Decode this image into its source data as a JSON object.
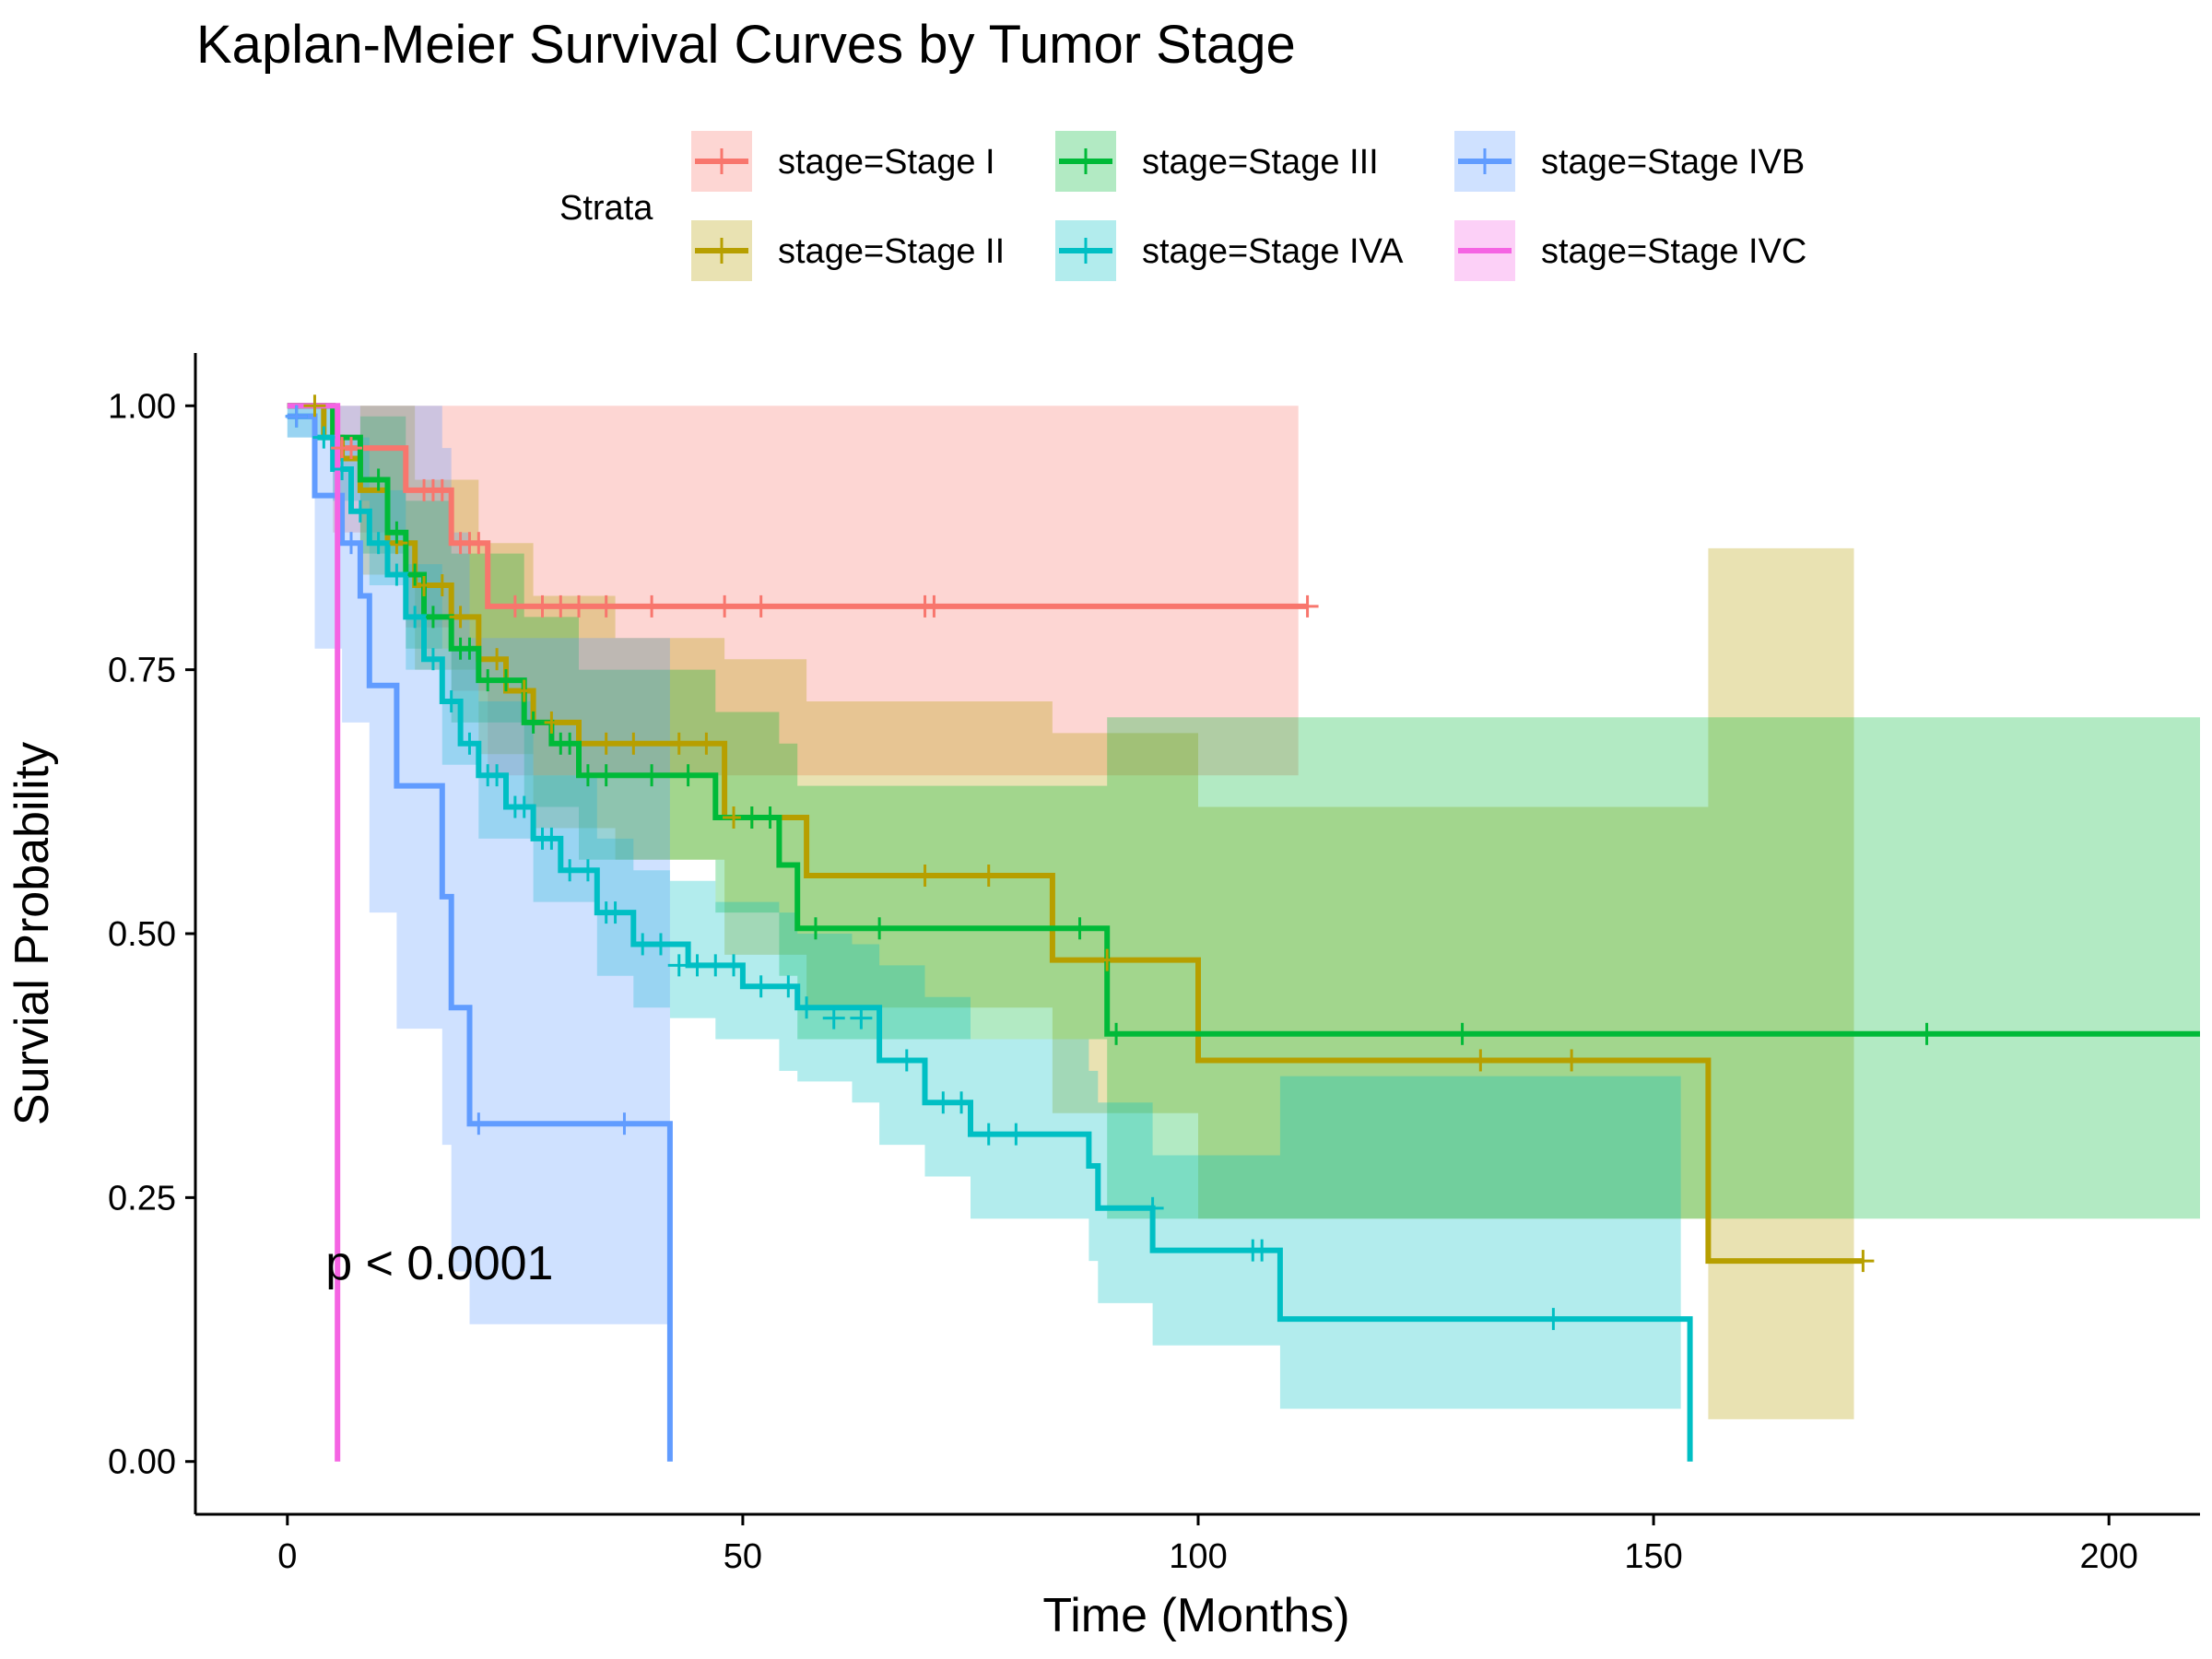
{
  "chart_data": {
    "type": "line",
    "subtype": "kaplan-meier-step",
    "title": "Kaplan-Meier Survival Curves by Tumor Stage",
    "xlabel": "Time (Months)",
    "ylabel": "Survial Probability",
    "xlim": [
      -10,
      210
    ],
    "ylim": [
      -0.05,
      1.05
    ],
    "x_ticks": [
      0,
      50,
      100,
      150,
      200
    ],
    "y_ticks": [
      0,
      0.25,
      0.5,
      0.75,
      1.0
    ],
    "y_tick_labels": [
      "0.00",
      "0.25",
      "0.50",
      "0.75",
      "1.00"
    ],
    "grid": false,
    "legend_position": "top",
    "legend_title": "Strata",
    "annotation": "p < 0.0001",
    "annotation_at": [
      5,
      0.19
    ],
    "series": [
      {
        "name": "stage=Stage I",
        "color": "#F8766D",
        "steps": [
          [
            0,
            1.0
          ],
          [
            5,
            0.96
          ],
          [
            13,
            0.92
          ],
          [
            18,
            0.87
          ],
          [
            22,
            0.81
          ],
          [
            112,
            0.81
          ]
        ],
        "ci": [
          [
            0,
            1.0,
            1.0
          ],
          [
            5,
            0.88,
            1.0
          ],
          [
            13,
            0.79,
            1.0
          ],
          [
            18,
            0.73,
            1.0
          ],
          [
            22,
            0.65,
            1.0
          ],
          [
            111,
            0.65,
            1.0
          ]
        ],
        "censors": [
          [
            6,
            0.96
          ],
          [
            7,
            0.96
          ],
          [
            15,
            0.92
          ],
          [
            16,
            0.92
          ],
          [
            17,
            0.92
          ],
          [
            19,
            0.87
          ],
          [
            20,
            0.87
          ],
          [
            21,
            0.87
          ],
          [
            25,
            0.81
          ],
          [
            28,
            0.81
          ],
          [
            30,
            0.81
          ],
          [
            32,
            0.81
          ],
          [
            35,
            0.81
          ],
          [
            40,
            0.81
          ],
          [
            48,
            0.81
          ],
          [
            52,
            0.81
          ],
          [
            70,
            0.81
          ],
          [
            71,
            0.81
          ],
          [
            112,
            0.81
          ]
        ]
      },
      {
        "name": "stage=Stage II",
        "color": "#B79F00",
        "steps": [
          [
            0,
            1.0
          ],
          [
            4,
            0.97
          ],
          [
            6,
            0.95
          ],
          [
            8,
            0.92
          ],
          [
            11,
            0.87
          ],
          [
            14,
            0.83
          ],
          [
            18,
            0.8
          ],
          [
            21,
            0.76
          ],
          [
            24,
            0.73
          ],
          [
            27,
            0.7
          ],
          [
            32,
            0.68
          ],
          [
            48,
            0.61
          ],
          [
            57,
            0.555
          ],
          [
            84,
            0.475
          ],
          [
            100,
            0.38
          ],
          [
            156,
            0.19
          ],
          [
            173,
            0.19
          ]
        ],
        "ci": [
          [
            0,
            1.0,
            1.0
          ],
          [
            8,
            0.84,
            1.0
          ],
          [
            14,
            0.75,
            0.93
          ],
          [
            21,
            0.67,
            0.87
          ],
          [
            27,
            0.6,
            0.82
          ],
          [
            36,
            0.57,
            0.78
          ],
          [
            48,
            0.48,
            0.76
          ],
          [
            57,
            0.43,
            0.72
          ],
          [
            84,
            0.33,
            0.69
          ],
          [
            100,
            0.23,
            0.62
          ],
          [
            156,
            0.04,
            0.865
          ],
          [
            172,
            0.04,
            0.865
          ]
        ],
        "censors": [
          [
            3,
            1.0
          ],
          [
            12,
            0.87
          ],
          [
            15,
            0.83
          ],
          [
            17,
            0.83
          ],
          [
            19,
            0.8
          ],
          [
            23,
            0.76
          ],
          [
            26,
            0.73
          ],
          [
            29,
            0.7
          ],
          [
            35,
            0.68
          ],
          [
            38,
            0.68
          ],
          [
            43,
            0.68
          ],
          [
            46,
            0.68
          ],
          [
            49,
            0.61
          ],
          [
            51,
            0.61
          ],
          [
            70,
            0.555
          ],
          [
            77,
            0.555
          ],
          [
            90,
            0.475
          ],
          [
            131,
            0.38
          ],
          [
            141,
            0.38
          ],
          [
            173,
            0.19
          ]
        ]
      },
      {
        "name": "stage=Stage III",
        "color": "#00BA38",
        "steps": [
          [
            0,
            1.0
          ],
          [
            5,
            0.97
          ],
          [
            8,
            0.93
          ],
          [
            11,
            0.88
          ],
          [
            13,
            0.84
          ],
          [
            15,
            0.8
          ],
          [
            18,
            0.77
          ],
          [
            21,
            0.74
          ],
          [
            26,
            0.7
          ],
          [
            29,
            0.68
          ],
          [
            32,
            0.65
          ],
          [
            47,
            0.61
          ],
          [
            54,
            0.565
          ],
          [
            56,
            0.505
          ],
          [
            90,
            0.405
          ],
          [
            210,
            0.405
          ]
        ],
        "ci": [
          [
            0,
            1.0,
            1.0
          ],
          [
            8,
            0.86,
            0.99
          ],
          [
            13,
            0.77,
            0.91
          ],
          [
            18,
            0.7,
            0.86
          ],
          [
            26,
            0.62,
            0.8
          ],
          [
            32,
            0.57,
            0.75
          ],
          [
            47,
            0.52,
            0.71
          ],
          [
            54,
            0.46,
            0.68
          ],
          [
            56,
            0.4,
            0.64
          ],
          [
            90,
            0.23,
            0.705
          ],
          [
            210,
            0.23,
            0.705
          ]
        ],
        "censors": [
          [
            10,
            0.93
          ],
          [
            12,
            0.88
          ],
          [
            14,
            0.84
          ],
          [
            16,
            0.8
          ],
          [
            19,
            0.77
          ],
          [
            20,
            0.77
          ],
          [
            22,
            0.74
          ],
          [
            24,
            0.74
          ],
          [
            27,
            0.7
          ],
          [
            30,
            0.68
          ],
          [
            31,
            0.68
          ],
          [
            33,
            0.65
          ],
          [
            35,
            0.65
          ],
          [
            40,
            0.65
          ],
          [
            44,
            0.65
          ],
          [
            51,
            0.61
          ],
          [
            53,
            0.61
          ],
          [
            58,
            0.505
          ],
          [
            65,
            0.505
          ],
          [
            87,
            0.505
          ],
          [
            91,
            0.405
          ],
          [
            129,
            0.405
          ],
          [
            180,
            0.405
          ]
        ]
      },
      {
        "name": "stage=Stage IVA",
        "color": "#00BFC4",
        "steps": [
          [
            0,
            0.99
          ],
          [
            3,
            0.97
          ],
          [
            5,
            0.94
          ],
          [
            7,
            0.9
          ],
          [
            9,
            0.87
          ],
          [
            11,
            0.84
          ],
          [
            13,
            0.8
          ],
          [
            15,
            0.76
          ],
          [
            17,
            0.72
          ],
          [
            19,
            0.68
          ],
          [
            21,
            0.65
          ],
          [
            24,
            0.62
          ],
          [
            27,
            0.59
          ],
          [
            30,
            0.56
          ],
          [
            34,
            0.52
          ],
          [
            38,
            0.49
          ],
          [
            44,
            0.47
          ],
          [
            50,
            0.45
          ],
          [
            56,
            0.43
          ],
          [
            65,
            0.38
          ],
          [
            70,
            0.34
          ],
          [
            75,
            0.31
          ],
          [
            88,
            0.28
          ],
          [
            89,
            0.24
          ],
          [
            95,
            0.2
          ],
          [
            109,
            0.135
          ],
          [
            154,
            0.0
          ]
        ],
        "ci": [
          [
            0,
            0.97,
            1.0
          ],
          [
            5,
            0.91,
            0.97
          ],
          [
            9,
            0.83,
            0.92
          ],
          [
            13,
            0.75,
            0.85
          ],
          [
            17,
            0.66,
            0.77
          ],
          [
            21,
            0.59,
            0.72
          ],
          [
            27,
            0.53,
            0.65
          ],
          [
            34,
            0.46,
            0.59
          ],
          [
            38,
            0.43,
            0.56
          ],
          [
            42,
            0.42,
            0.55
          ],
          [
            47,
            0.4,
            0.53
          ],
          [
            54,
            0.37,
            0.52
          ],
          [
            56,
            0.36,
            0.5
          ],
          [
            62,
            0.34,
            0.49
          ],
          [
            65,
            0.3,
            0.47
          ],
          [
            70,
            0.27,
            0.44
          ],
          [
            75,
            0.23,
            0.4
          ],
          [
            88,
            0.19,
            0.37
          ],
          [
            89,
            0.15,
            0.34
          ],
          [
            95,
            0.11,
            0.29
          ],
          [
            109,
            0.05,
            0.365
          ],
          [
            153,
            0.05,
            0.365
          ]
        ],
        "censors": [
          [
            1,
            0.99
          ],
          [
            4,
            0.97
          ],
          [
            6,
            0.94
          ],
          [
            8,
            0.9
          ],
          [
            10,
            0.87
          ],
          [
            12,
            0.84
          ],
          [
            14,
            0.8
          ],
          [
            16,
            0.76
          ],
          [
            18,
            0.72
          ],
          [
            20,
            0.68
          ],
          [
            22,
            0.65
          ],
          [
            23,
            0.65
          ],
          [
            25,
            0.62
          ],
          [
            26,
            0.62
          ],
          [
            28,
            0.59
          ],
          [
            29,
            0.59
          ],
          [
            31,
            0.56
          ],
          [
            33,
            0.56
          ],
          [
            35,
            0.52
          ],
          [
            36,
            0.52
          ],
          [
            39,
            0.49
          ],
          [
            41,
            0.49
          ],
          [
            43,
            0.47
          ],
          [
            45,
            0.47
          ],
          [
            47,
            0.47
          ],
          [
            49,
            0.47
          ],
          [
            52,
            0.45
          ],
          [
            55,
            0.45
          ],
          [
            57,
            0.43
          ],
          [
            60,
            0.42
          ],
          [
            63,
            0.42
          ],
          [
            68,
            0.38
          ],
          [
            72,
            0.34
          ],
          [
            74,
            0.34
          ],
          [
            77,
            0.31
          ],
          [
            80,
            0.31
          ],
          [
            95,
            0.24
          ],
          [
            106,
            0.2
          ],
          [
            107,
            0.2
          ],
          [
            139,
            0.135
          ]
        ]
      },
      {
        "name": "stage=Stage IVB",
        "color": "#619CFF",
        "steps": [
          [
            0,
            0.99
          ],
          [
            3,
            0.915
          ],
          [
            6,
            0.87
          ],
          [
            8,
            0.82
          ],
          [
            9,
            0.735
          ],
          [
            12,
            0.64
          ],
          [
            17,
            0.535
          ],
          [
            18,
            0.43
          ],
          [
            20,
            0.32
          ],
          [
            42,
            0.0
          ]
        ],
        "ci": [
          [
            0,
            0.97,
            1.0
          ],
          [
            3,
            0.77,
            1.0
          ],
          [
            6,
            0.7,
            1.0
          ],
          [
            9,
            0.52,
            1.0
          ],
          [
            12,
            0.41,
            1.0
          ],
          [
            17,
            0.3,
            0.96
          ],
          [
            18,
            0.18,
            0.88
          ],
          [
            20,
            0.13,
            0.78
          ],
          [
            42,
            0.13,
            0.78
          ]
        ],
        "censors": [
          [
            1,
            0.99
          ],
          [
            7,
            0.87
          ],
          [
            21,
            0.32
          ],
          [
            37,
            0.32
          ]
        ]
      },
      {
        "name": "stage=Stage IVC",
        "color": "#F564E3",
        "steps": [
          [
            0,
            1.0
          ],
          [
            5.5,
            0.0
          ]
        ],
        "ci": [
          [
            0,
            1.0,
            1.0
          ],
          [
            5.5,
            1.0,
            1.0
          ]
        ],
        "censors": []
      }
    ]
  },
  "legend_items": [
    {
      "label": "stage=Stage I",
      "color": "#F8766D"
    },
    {
      "label": "stage=Stage II",
      "color": "#B79F00"
    },
    {
      "label": "stage=Stage III",
      "color": "#00BA38"
    },
    {
      "label": "stage=Stage IVA",
      "color": "#00BFC4"
    },
    {
      "label": "stage=Stage IVB",
      "color": "#619CFF"
    },
    {
      "label": "stage=Stage IVC",
      "color": "#F564E3"
    }
  ]
}
